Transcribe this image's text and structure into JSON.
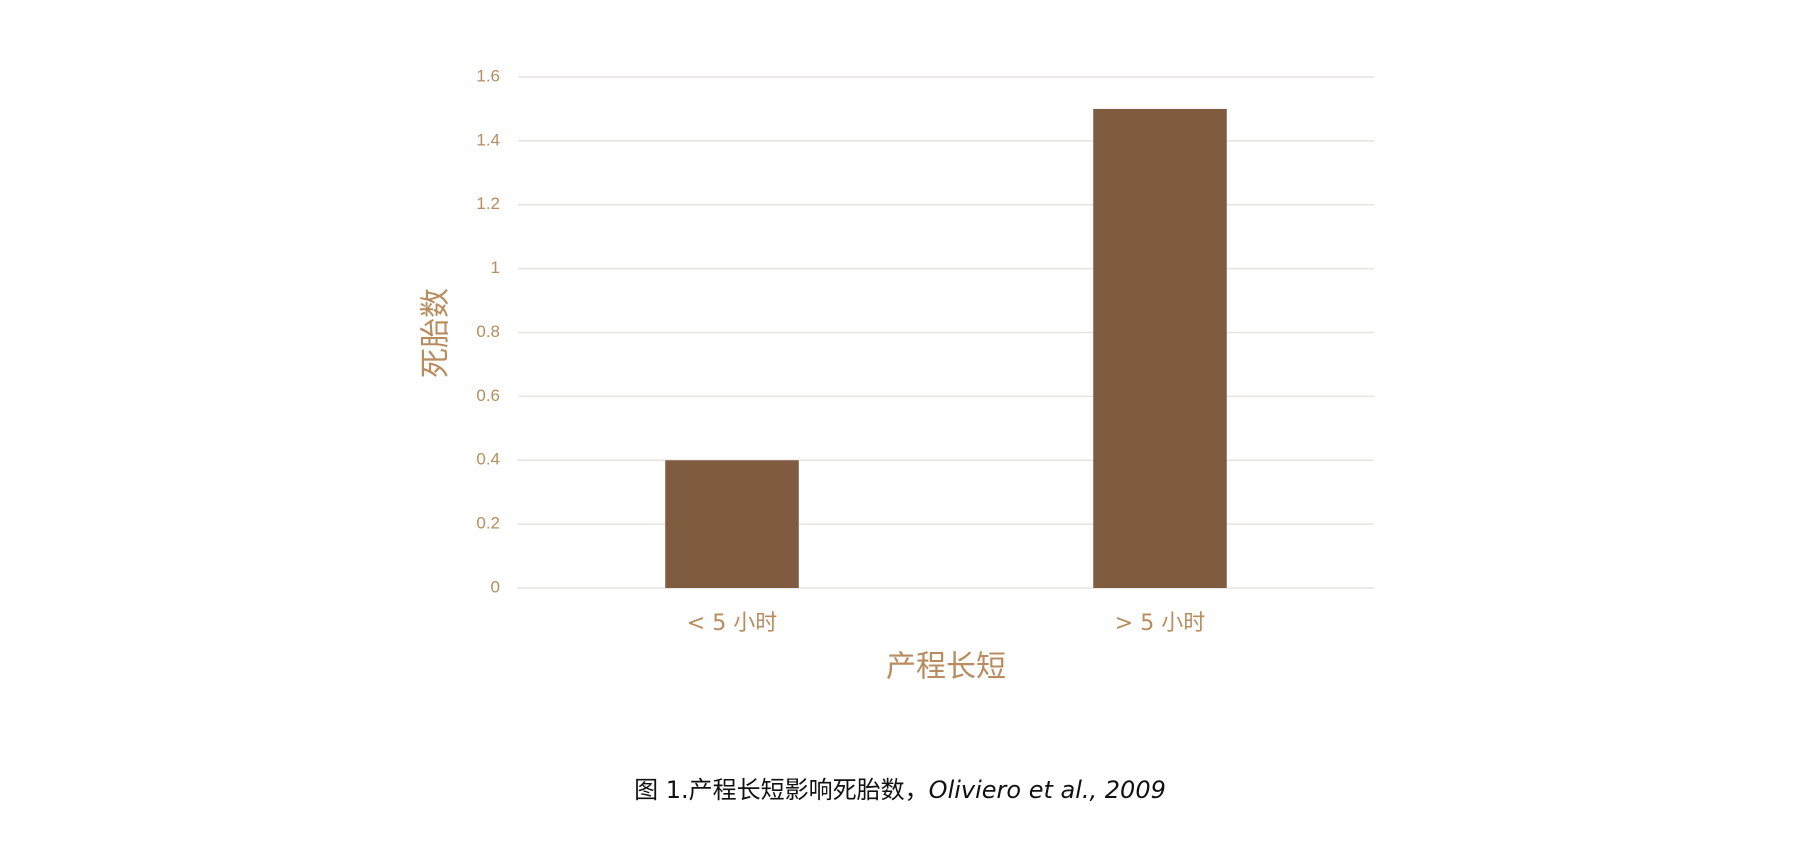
{
  "chart_data": {
    "type": "bar",
    "x_label": "产程长短",
    "y_label": "死胎数",
    "categories": [
      "< 5 小时",
      "> 5 小时"
    ],
    "values": [
      0.4,
      1.5
    ],
    "color": "#7f5b3f",
    "ylim": [
      0,
      1.6
    ],
    "yticks": [
      0,
      0.2,
      0.4,
      0.6,
      0.8,
      1,
      1.2,
      1.4,
      1.6
    ],
    "grid": true
  },
  "caption": {
    "text": "图 1.产程长短影响死胎数，",
    "citation": "Oliviero et al., 2009"
  }
}
